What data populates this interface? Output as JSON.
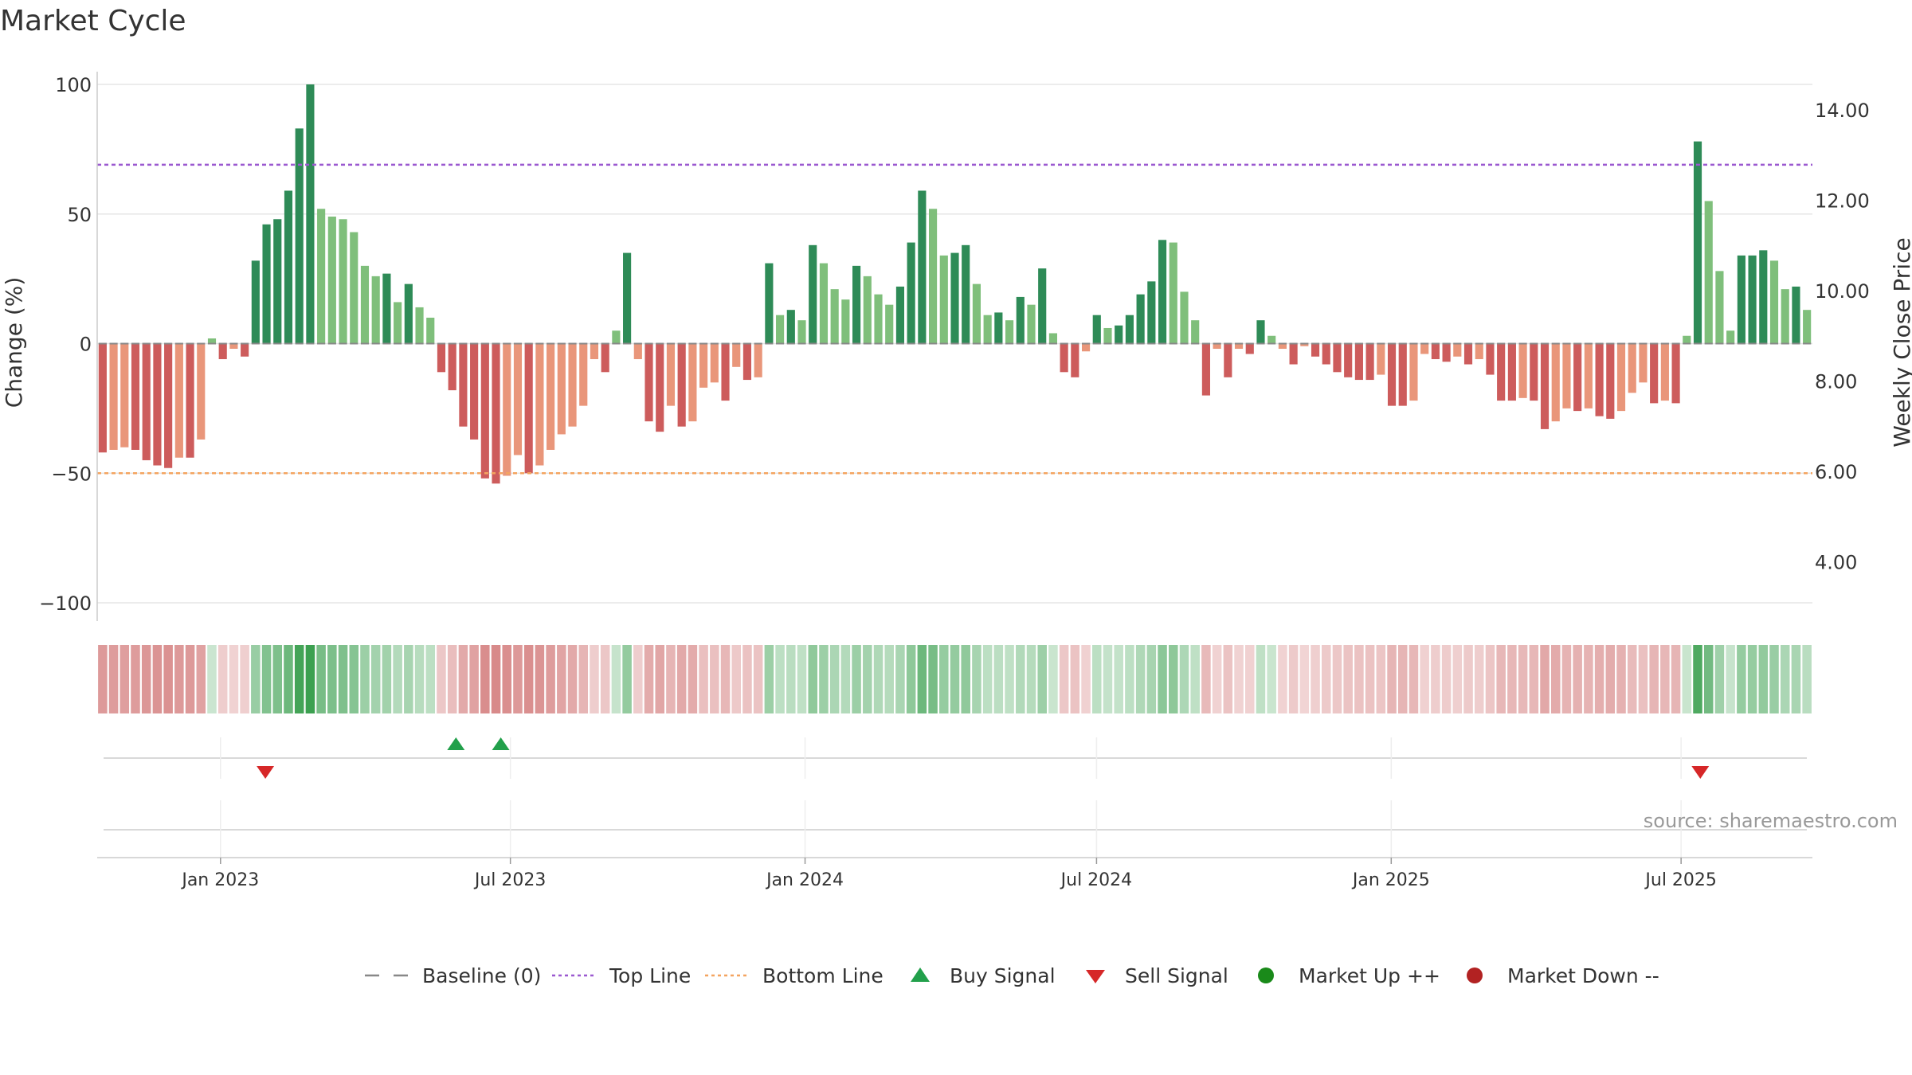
{
  "chart_data": {
    "type": "bar",
    "title": "Market Cycle",
    "ylabel": "Change (%)",
    "y2label": "Weekly Close Price",
    "ylim": [
      -100,
      100
    ],
    "y2lim": [
      3.0,
      15.0
    ],
    "yticks": [
      "100",
      "50",
      "0",
      "−50",
      "−100"
    ],
    "y2ticks": [
      "14.00",
      "12.00",
      "10.00",
      "8.00",
      "6.00",
      "4.00"
    ],
    "x_start": "2022-10-16",
    "x_end": "2025-09-21",
    "xticks": [
      {
        "date": "2023-01-01",
        "label": "Jan 2023"
      },
      {
        "date": "2023-07-01",
        "label": "Jul 2023"
      },
      {
        "date": "2024-01-01",
        "label": "Jan 2024"
      },
      {
        "date": "2024-07-01",
        "label": "Jul 2024"
      },
      {
        "date": "2025-01-01",
        "label": "Jan 2025"
      },
      {
        "date": "2025-07-01",
        "label": "Jul 2025"
      }
    ],
    "top_line": 69,
    "bottom_line": -50,
    "baseline": 0,
    "colors": {
      "up_strong": "#2e8b57",
      "up_weak": "#7fbf7b",
      "down_strong": "#cd5c5c",
      "down_weak": "#e9967a",
      "top_line": "#9b59d0",
      "bottom_line": "#f4a460",
      "baseline": "#888888",
      "buy": "#22a04b",
      "sell": "#d62728",
      "market_up": "#1a8a1a",
      "market_down": "#b22222"
    },
    "values": [
      -42,
      -41,
      -40,
      -41,
      -45,
      -47,
      -48,
      -44,
      -44,
      -37,
      2,
      -6,
      -2,
      -5,
      32,
      46,
      48,
      59,
      83,
      100,
      52,
      49,
      48,
      43,
      30,
      26,
      27,
      16,
      23,
      14,
      10,
      -11,
      -18,
      -32,
      -37,
      -52,
      -54,
      -51,
      -43,
      -50,
      -47,
      -41,
      -35,
      -32,
      -24,
      -6,
      -11,
      5,
      35,
      -6,
      -30,
      -34,
      -24,
      -32,
      -30,
      -17,
      -15,
      -22,
      -9,
      -14,
      -13,
      31,
      11,
      13,
      9,
      38,
      31,
      21,
      17,
      30,
      26,
      19,
      15,
      22,
      39,
      59,
      52,
      34,
      35,
      38,
      23,
      11,
      12,
      9,
      18,
      15,
      29,
      4,
      -11,
      -13,
      -3,
      11,
      6,
      7,
      11,
      19,
      24,
      40,
      39,
      20,
      9,
      -20,
      -2,
      -13,
      -2,
      -4,
      9,
      3,
      -2,
      -8,
      -1,
      -5,
      -8,
      -11,
      -13,
      -14,
      -14,
      -12,
      -24,
      -24,
      -22,
      -4,
      -6,
      -7,
      -5,
      -8,
      -6,
      -12,
      -22,
      -22,
      -21,
      -22,
      -33,
      -30,
      -25,
      -26,
      -25,
      -28,
      -29,
      -26,
      -19,
      -15,
      -23,
      -22,
      -23,
      3,
      78,
      55,
      28,
      5,
      34,
      34,
      36,
      32,
      21,
      22,
      13
    ],
    "cycle_strip": [
      "down",
      "down",
      "down",
      "down",
      "down",
      "down",
      "down",
      "down",
      "down",
      "down",
      "up",
      "down",
      "down",
      "down",
      "up",
      "up",
      "up",
      "up",
      "up",
      "up",
      "up",
      "up",
      "up",
      "up",
      "up",
      "up",
      "up",
      "up",
      "up",
      "up",
      "up",
      "down",
      "down",
      "down",
      "down",
      "down",
      "down",
      "down",
      "down",
      "down",
      "down",
      "down",
      "down",
      "down",
      "down",
      "down",
      "down",
      "up",
      "up",
      "down",
      "down",
      "down",
      "down",
      "down",
      "down",
      "down",
      "down",
      "down",
      "down",
      "down",
      "down",
      "up",
      "up",
      "up",
      "up",
      "up",
      "up",
      "up",
      "up",
      "up",
      "up",
      "up",
      "up",
      "up",
      "up",
      "up",
      "up",
      "up",
      "up",
      "up",
      "up",
      "up",
      "up",
      "up",
      "up",
      "up",
      "up",
      "up",
      "down",
      "down",
      "down",
      "up",
      "up",
      "up",
      "up",
      "up",
      "up",
      "up",
      "up",
      "up",
      "up",
      "down",
      "down",
      "down",
      "down",
      "down",
      "up",
      "up",
      "down",
      "down",
      "down",
      "down",
      "down",
      "down",
      "down",
      "down",
      "down",
      "down",
      "down",
      "down",
      "down",
      "down",
      "down",
      "down",
      "down",
      "down",
      "down",
      "down",
      "down",
      "down",
      "down",
      "down",
      "down",
      "down",
      "down",
      "down",
      "down",
      "down",
      "down",
      "down",
      "down",
      "down",
      "down",
      "down",
      "down",
      "up",
      "up",
      "up",
      "up",
      "up",
      "up",
      "up",
      "up",
      "up",
      "up",
      "up",
      "up"
    ],
    "buy_signals": [
      "2023-05-28",
      "2023-06-25"
    ],
    "sell_signals": [
      "2023-01-29",
      "2025-07-13"
    ],
    "source": "source: sharemaestro.com",
    "legend": {
      "position": "bottom-center",
      "items": [
        {
          "label": "Baseline (0)",
          "marker": "dashed-gray"
        },
        {
          "label": "Top Line",
          "marker": "dotted-purple"
        },
        {
          "label": "Bottom Line",
          "marker": "dotted-orange"
        },
        {
          "label": "Buy Signal",
          "marker": "triangle-up-green"
        },
        {
          "label": "Sell Signal",
          "marker": "triangle-down-red"
        },
        {
          "label": "Market Up ++",
          "marker": "circle-green"
        },
        {
          "label": "Market Down --",
          "marker": "circle-darkred"
        }
      ]
    }
  }
}
